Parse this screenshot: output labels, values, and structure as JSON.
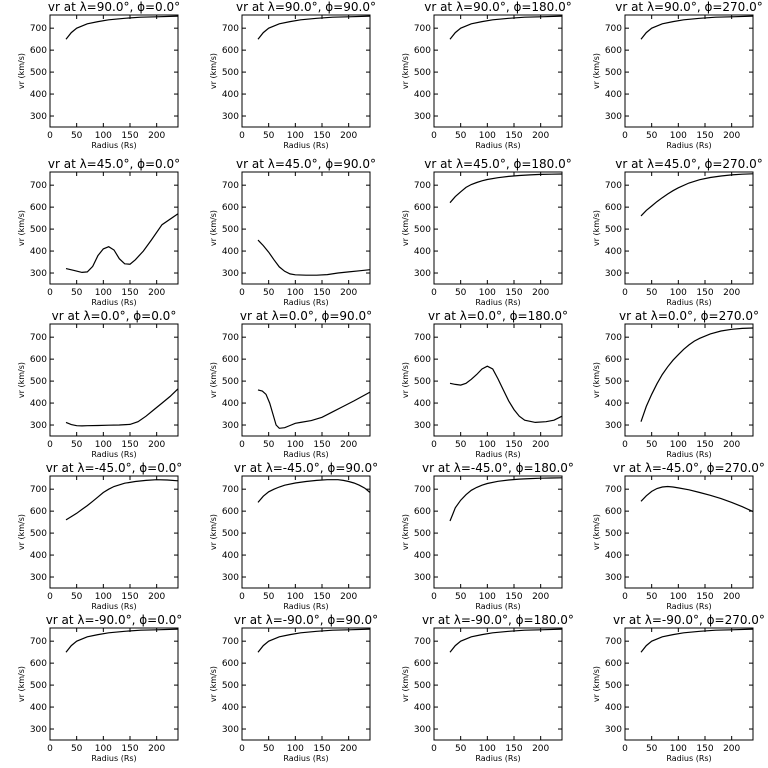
{
  "chart_data": [
    {
      "type": "line",
      "title": "vr at λ=90.0°, ϕ=0.0°",
      "xlabel": "Radius (Rs)",
      "ylabel": "vr (km/s)",
      "xlim": [
        0,
        240
      ],
      "ylim": [
        250,
        760
      ],
      "xticks": [
        0,
        50,
        100,
        150,
        200
      ],
      "yticks": [
        300,
        400,
        500,
        600,
        700
      ],
      "x": [
        30,
        40,
        50,
        70,
        90,
        110,
        140,
        170,
        200,
        240
      ],
      "y": [
        650,
        680,
        700,
        720,
        730,
        738,
        745,
        750,
        752,
        755
      ]
    },
    {
      "type": "line",
      "title": "vr at λ=90.0°, ϕ=90.0°",
      "xlabel": "Radius (Rs)",
      "ylabel": "vr (km/s)",
      "xlim": [
        0,
        240
      ],
      "ylim": [
        250,
        760
      ],
      "xticks": [
        0,
        50,
        100,
        150,
        200
      ],
      "yticks": [
        300,
        400,
        500,
        600,
        700
      ],
      "x": [
        30,
        40,
        50,
        70,
        90,
        110,
        140,
        170,
        200,
        240
      ],
      "y": [
        650,
        680,
        700,
        720,
        730,
        738,
        745,
        750,
        752,
        755
      ]
    },
    {
      "type": "line",
      "title": "vr at λ=90.0°, ϕ=180.0°",
      "xlabel": "Radius (Rs)",
      "ylabel": "vr (km/s)",
      "xlim": [
        0,
        240
      ],
      "ylim": [
        250,
        760
      ],
      "xticks": [
        0,
        50,
        100,
        150,
        200
      ],
      "yticks": [
        300,
        400,
        500,
        600,
        700
      ],
      "x": [
        30,
        40,
        50,
        70,
        90,
        110,
        140,
        170,
        200,
        240
      ],
      "y": [
        650,
        680,
        700,
        720,
        730,
        738,
        745,
        750,
        752,
        755
      ]
    },
    {
      "type": "line",
      "title": "vr at λ=90.0°, ϕ=270.0°",
      "xlabel": "Radius (Rs)",
      "ylabel": "vr (km/s)",
      "xlim": [
        0,
        240
      ],
      "ylim": [
        250,
        760
      ],
      "xticks": [
        0,
        50,
        100,
        150,
        200
      ],
      "yticks": [
        300,
        400,
        500,
        600,
        700
      ],
      "x": [
        30,
        40,
        50,
        70,
        90,
        110,
        140,
        170,
        200,
        240
      ],
      "y": [
        650,
        680,
        700,
        720,
        730,
        738,
        745,
        750,
        752,
        755
      ]
    },
    {
      "type": "line",
      "title": "vr at λ=45.0°, ϕ=0.0°",
      "xlabel": "Radius (Rs)",
      "ylabel": "vr (km/s)",
      "xlim": [
        0,
        240
      ],
      "ylim": [
        250,
        760
      ],
      "xticks": [
        0,
        50,
        100,
        150,
        200
      ],
      "yticks": [
        300,
        400,
        500,
        600,
        700
      ],
      "x": [
        30,
        45,
        60,
        70,
        80,
        90,
        100,
        110,
        120,
        130,
        140,
        150,
        160,
        175,
        190,
        210,
        240
      ],
      "y": [
        320,
        312,
        303,
        305,
        330,
        380,
        410,
        420,
        405,
        365,
        342,
        340,
        360,
        400,
        450,
        520,
        570
      ]
    },
    {
      "type": "line",
      "title": "vr at λ=45.0°, ϕ=90.0°",
      "xlabel": "Radius (Rs)",
      "ylabel": "vr (km/s)",
      "xlim": [
        0,
        240
      ],
      "ylim": [
        250,
        760
      ],
      "xticks": [
        0,
        50,
        100,
        150,
        200
      ],
      "yticks": [
        300,
        400,
        500,
        600,
        700
      ],
      "x": [
        30,
        40,
        50,
        60,
        70,
        80,
        90,
        100,
        120,
        140,
        160,
        180,
        200,
        220,
        240
      ],
      "y": [
        450,
        425,
        395,
        360,
        328,
        308,
        296,
        292,
        290,
        290,
        293,
        300,
        305,
        310,
        315
      ]
    },
    {
      "type": "line",
      "title": "vr at λ=45.0°, ϕ=180.0°",
      "xlabel": "Radius (Rs)",
      "ylabel": "vr (km/s)",
      "xlim": [
        0,
        240
      ],
      "ylim": [
        250,
        760
      ],
      "xticks": [
        0,
        50,
        100,
        150,
        200
      ],
      "yticks": [
        300,
        400,
        500,
        600,
        700
      ],
      "x": [
        30,
        40,
        50,
        60,
        70,
        80,
        90,
        100,
        120,
        140,
        160,
        180,
        200,
        220,
        240
      ],
      "y": [
        620,
        648,
        670,
        690,
        703,
        712,
        720,
        726,
        734,
        740,
        744,
        747,
        749,
        750,
        751
      ]
    },
    {
      "type": "line",
      "title": "vr at λ=45.0°, ϕ=270.0°",
      "xlabel": "Radius (Rs)",
      "ylabel": "vr (km/s)",
      "xlim": [
        0,
        240
      ],
      "ylim": [
        250,
        760
      ],
      "xticks": [
        0,
        50,
        100,
        150,
        200
      ],
      "yticks": [
        300,
        400,
        500,
        600,
        700
      ],
      "x": [
        30,
        40,
        50,
        60,
        70,
        80,
        90,
        100,
        120,
        140,
        160,
        180,
        200,
        220,
        240
      ],
      "y": [
        560,
        585,
        605,
        625,
        643,
        660,
        675,
        688,
        710,
        725,
        735,
        742,
        747,
        750,
        752
      ]
    },
    {
      "type": "line",
      "title": "vr at λ=0.0°, ϕ=0.0°",
      "xlabel": "Radius (Rs)",
      "ylabel": "vr (km/s)",
      "xlim": [
        0,
        240
      ],
      "ylim": [
        250,
        760
      ],
      "xticks": [
        0,
        50,
        100,
        150,
        200
      ],
      "yticks": [
        300,
        400,
        500,
        600,
        700
      ],
      "x": [
        30,
        40,
        50,
        60,
        70,
        90,
        110,
        130,
        150,
        165,
        180,
        195,
        210,
        225,
        240
      ],
      "y": [
        312,
        302,
        297,
        296,
        297,
        298,
        299,
        300,
        303,
        315,
        340,
        370,
        400,
        430,
        465
      ]
    },
    {
      "type": "line",
      "title": "vr at λ=0.0°, ϕ=90.0°",
      "xlabel": "Radius (Rs)",
      "ylabel": "vr (km/s)",
      "xlim": [
        0,
        240
      ],
      "ylim": [
        250,
        760
      ],
      "xticks": [
        0,
        50,
        100,
        150,
        200
      ],
      "yticks": [
        300,
        400,
        500,
        600,
        700
      ],
      "x": [
        30,
        38,
        45,
        52,
        58,
        64,
        70,
        80,
        90,
        100,
        110,
        130,
        150,
        170,
        190,
        210,
        240
      ],
      "y": [
        460,
        455,
        440,
        400,
        350,
        300,
        285,
        288,
        298,
        308,
        312,
        320,
        335,
        360,
        385,
        410,
        450
      ]
    },
    {
      "type": "line",
      "title": "vr at λ=0.0°, ϕ=180.0°",
      "xlabel": "Radius (Rs)",
      "ylabel": "vr (km/s)",
      "xlim": [
        0,
        240
      ],
      "ylim": [
        250,
        760
      ],
      "xticks": [
        0,
        50,
        100,
        150,
        200
      ],
      "yticks": [
        300,
        400,
        500,
        600,
        700
      ],
      "x": [
        30,
        40,
        50,
        60,
        70,
        80,
        90,
        100,
        110,
        120,
        130,
        140,
        150,
        160,
        170,
        190,
        210,
        225,
        240
      ],
      "y": [
        490,
        485,
        482,
        490,
        508,
        530,
        555,
        568,
        555,
        510,
        460,
        410,
        370,
        340,
        322,
        312,
        315,
        322,
        340
      ]
    },
    {
      "type": "line",
      "title": "vr at λ=0.0°, ϕ=270.0°",
      "xlabel": "Radius (Rs)",
      "ylabel": "vr (km/s)",
      "xlim": [
        0,
        240
      ],
      "ylim": [
        250,
        760
      ],
      "xticks": [
        0,
        50,
        100,
        150,
        200
      ],
      "yticks": [
        300,
        400,
        500,
        600,
        700
      ],
      "x": [
        30,
        40,
        50,
        60,
        70,
        80,
        90,
        100,
        110,
        120,
        130,
        140,
        160,
        180,
        200,
        220,
        240
      ],
      "y": [
        315,
        385,
        440,
        488,
        530,
        565,
        595,
        620,
        645,
        665,
        682,
        695,
        715,
        728,
        736,
        740,
        742
      ]
    },
    {
      "type": "line",
      "title": "vr at λ=-45.0°, ϕ=0.0°",
      "xlabel": "Radius (Rs)",
      "ylabel": "vr (km/s)",
      "xlim": [
        0,
        240
      ],
      "ylim": [
        250,
        760
      ],
      "xticks": [
        0,
        50,
        100,
        150,
        200
      ],
      "yticks": [
        300,
        400,
        500,
        600,
        700
      ],
      "x": [
        30,
        40,
        50,
        60,
        70,
        80,
        90,
        100,
        110,
        120,
        140,
        160,
        180,
        200,
        220,
        240
      ],
      "y": [
        560,
        575,
        590,
        608,
        625,
        645,
        665,
        685,
        700,
        712,
        727,
        735,
        740,
        743,
        742,
        738
      ]
    },
    {
      "type": "line",
      "title": "vr at λ=-45.0°, ϕ=90.0°",
      "xlabel": "Radius (Rs)",
      "ylabel": "vr (km/s)",
      "xlim": [
        0,
        240
      ],
      "ylim": [
        250,
        760
      ],
      "xticks": [
        0,
        50,
        100,
        150,
        200
      ],
      "yticks": [
        300,
        400,
        500,
        600,
        700
      ],
      "x": [
        30,
        40,
        50,
        60,
        70,
        80,
        100,
        120,
        140,
        160,
        180,
        190,
        200,
        210,
        220,
        230,
        240
      ],
      "y": [
        640,
        668,
        688,
        700,
        710,
        718,
        728,
        735,
        740,
        743,
        743,
        740,
        735,
        728,
        718,
        705,
        685
      ]
    },
    {
      "type": "line",
      "title": "vr at λ=-45.0°, ϕ=180.0°",
      "xlabel": "Radius (Rs)",
      "ylabel": "vr (km/s)",
      "xlim": [
        0,
        240
      ],
      "ylim": [
        250,
        760
      ],
      "xticks": [
        0,
        50,
        100,
        150,
        200
      ],
      "yticks": [
        300,
        400,
        500,
        600,
        700
      ],
      "x": [
        30,
        35,
        40,
        50,
        60,
        70,
        80,
        90,
        100,
        120,
        140,
        160,
        180,
        200,
        220,
        240
      ],
      "y": [
        555,
        585,
        615,
        650,
        675,
        695,
        708,
        718,
        726,
        736,
        742,
        746,
        748,
        750,
        751,
        752
      ]
    },
    {
      "type": "line",
      "title": "vr at λ=-45.0°, ϕ=270.0°",
      "xlabel": "Radius (Rs)",
      "ylabel": "vr (km/s)",
      "xlim": [
        0,
        240
      ],
      "ylim": [
        250,
        760
      ],
      "xticks": [
        0,
        50,
        100,
        150,
        200
      ],
      "yticks": [
        300,
        400,
        500,
        600,
        700
      ],
      "x": [
        30,
        40,
        50,
        60,
        70,
        80,
        90,
        100,
        120,
        140,
        160,
        180,
        200,
        220,
        240
      ],
      "y": [
        645,
        670,
        690,
        703,
        710,
        712,
        710,
        706,
        697,
        685,
        672,
        657,
        640,
        620,
        598
      ]
    },
    {
      "type": "line",
      "title": "vr at λ=-90.0°, ϕ=0.0°",
      "xlabel": "Radius (Rs)",
      "ylabel": "vr (km/s)",
      "xlim": [
        0,
        240
      ],
      "ylim": [
        250,
        760
      ],
      "xticks": [
        0,
        50,
        100,
        150,
        200
      ],
      "yticks": [
        300,
        400,
        500,
        600,
        700
      ],
      "x": [
        30,
        40,
        50,
        70,
        90,
        110,
        140,
        170,
        200,
        240
      ],
      "y": [
        650,
        680,
        700,
        720,
        730,
        738,
        745,
        750,
        752,
        755
      ]
    },
    {
      "type": "line",
      "title": "vr at λ=-90.0°, ϕ=90.0°",
      "xlabel": "Radius (Rs)",
      "ylabel": "vr (km/s)",
      "xlim": [
        0,
        240
      ],
      "ylim": [
        250,
        760
      ],
      "xticks": [
        0,
        50,
        100,
        150,
        200
      ],
      "yticks": [
        300,
        400,
        500,
        600,
        700
      ],
      "x": [
        30,
        40,
        50,
        70,
        90,
        110,
        140,
        170,
        200,
        240
      ],
      "y": [
        650,
        680,
        700,
        720,
        730,
        738,
        745,
        750,
        752,
        755
      ]
    },
    {
      "type": "line",
      "title": "vr at λ=-90.0°, ϕ=180.0°",
      "xlabel": "Radius (Rs)",
      "ylabel": "vr (km/s)",
      "xlim": [
        0,
        240
      ],
      "ylim": [
        250,
        760
      ],
      "xticks": [
        0,
        50,
        100,
        150,
        200
      ],
      "yticks": [
        300,
        400,
        500,
        600,
        700
      ],
      "x": [
        30,
        40,
        50,
        70,
        90,
        110,
        140,
        170,
        200,
        240
      ],
      "y": [
        650,
        680,
        700,
        720,
        730,
        738,
        745,
        750,
        752,
        755
      ]
    },
    {
      "type": "line",
      "title": "vr at λ=-90.0°, ϕ=270.0°",
      "xlabel": "Radius (Rs)",
      "ylabel": "vr (km/s)",
      "xlim": [
        0,
        240
      ],
      "ylim": [
        250,
        760
      ],
      "xticks": [
        0,
        50,
        100,
        150,
        200
      ],
      "yticks": [
        300,
        400,
        500,
        600,
        700
      ],
      "x": [
        30,
        40,
        50,
        70,
        90,
        110,
        140,
        170,
        200,
        240
      ],
      "y": [
        650,
        680,
        700,
        720,
        730,
        738,
        745,
        750,
        752,
        755
      ]
    }
  ]
}
